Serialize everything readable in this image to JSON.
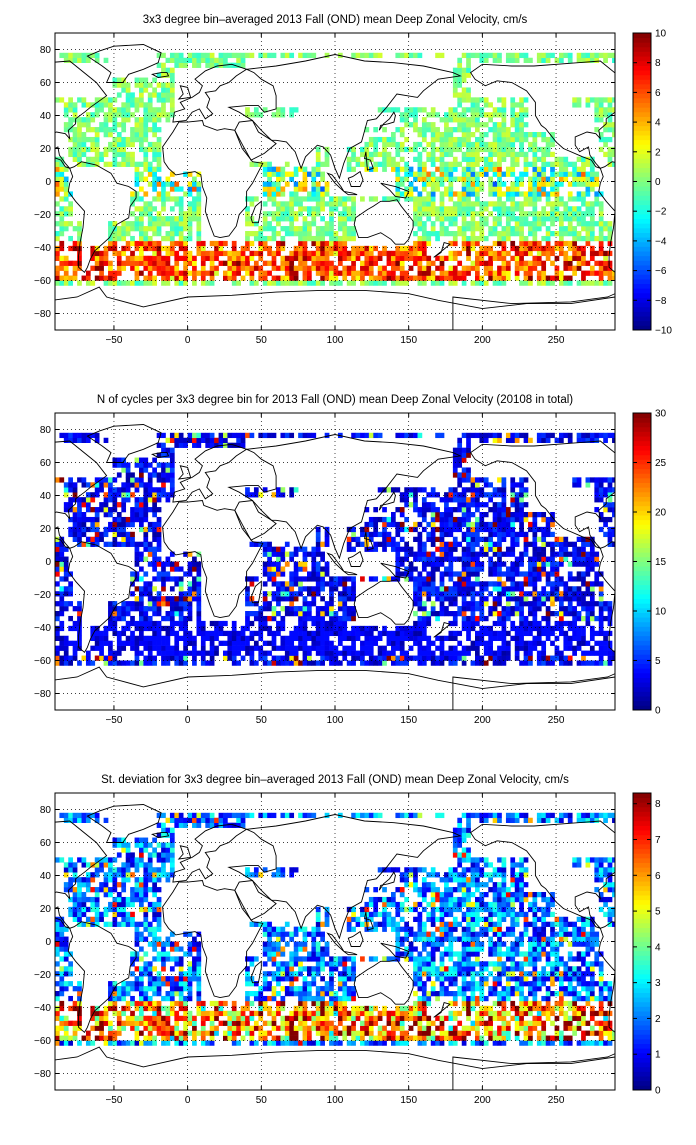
{
  "chart_data": [
    {
      "type": "heatmap",
      "title": "3x3 degree bin–averaged 2013 Fall (OND) mean Deep Zonal Velocity, cm/s",
      "xlim": [
        -90,
        290
      ],
      "ylim": [
        -90,
        90
      ],
      "xticks": [
        -50,
        0,
        50,
        100,
        150,
        200,
        250
      ],
      "yticks": [
        80,
        60,
        40,
        20,
        0,
        -20,
        -40,
        -60,
        -80
      ],
      "colorbar": {
        "min": -10,
        "max": 10,
        "ticks": [
          10,
          8,
          6,
          4,
          2,
          0,
          -2,
          -4,
          -6,
          -8,
          -10
        ]
      },
      "colormap": "jet",
      "grid": true,
      "field": "velocity",
      "bin_deg": 3
    },
    {
      "type": "heatmap",
      "title": "N of cycles per 3x3 degree bin for 2013 Fall (OND) mean Deep Zonal Velocity (20108 in total)",
      "xlim": [
        -90,
        290
      ],
      "ylim": [
        -90,
        90
      ],
      "xticks": [
        -50,
        0,
        50,
        100,
        150,
        200,
        250
      ],
      "yticks": [
        80,
        60,
        40,
        20,
        0,
        -20,
        -40,
        -60,
        -80
      ],
      "colorbar": {
        "min": 0,
        "max": 30,
        "ticks": [
          30,
          25,
          20,
          15,
          10,
          5,
          0
        ]
      },
      "colormap": "jet",
      "grid": true,
      "field": "count",
      "bin_deg": 3
    },
    {
      "type": "heatmap",
      "title": "St. deviation for 3x3 degree bin–averaged 2013 Fall (OND) mean Deep Zonal Velocity, cm/s",
      "xlim": [
        -90,
        290
      ],
      "ylim": [
        -90,
        90
      ],
      "xticks": [
        -50,
        0,
        50,
        100,
        150,
        200,
        250
      ],
      "yticks": [
        80,
        60,
        40,
        20,
        0,
        -20,
        -40,
        -60,
        -80
      ],
      "colorbar": {
        "min": 0,
        "max": 8.3,
        "ticks": [
          8,
          7,
          6,
          5,
          4,
          3,
          2,
          1,
          0
        ]
      },
      "colormap": "jet",
      "grid": true,
      "field": "stdev",
      "bin_deg": 3
    }
  ]
}
